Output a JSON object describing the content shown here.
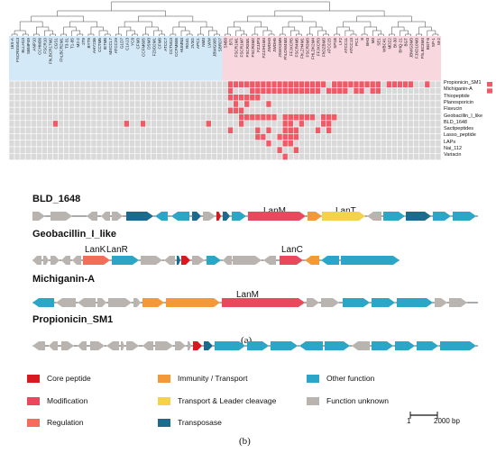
{
  "panel_a": {
    "caption": "(a)",
    "taxa_blue": [
      "16S-A",
      "FSCR5SM13",
      "BLLH13",
      "SBMP49",
      "ANP10",
      "CCHM36",
      "FSCR10",
      "FhLBCR17M2",
      "CGS1",
      "FhLBCR2M1",
      "T3-31",
      "T1-85",
      "M2-2",
      "2T9",
      "BYT9",
      "AHY236",
      "CCTM6",
      "IE7M8",
      "MXCCL7",
      "ATCC29",
      "G1D7",
      "C1A13",
      "YC8",
      "CFM3",
      "CCFM605",
      "DSM3",
      "FZ9D2M1",
      "CFM8",
      "ATCC7",
      "CCTM13",
      "CCFM606",
      "HUMN3",
      "RG41",
      "2V3G",
      "APC1",
      "NM3",
      "LWW",
      "JBWG905",
      "SBRD7"
    ],
    "taxa_pink": [
      "SN58",
      "B71",
      "FSCR1M1",
      "FSCR1M7",
      "FSCR3M1",
      "FSCR3M2",
      "FZJJP3",
      "FZJJH1M4",
      "JWDH3",
      "JWDH5",
      "JSWX3M9",
      "FhLDW4M3",
      "FFJXCR5",
      "FSCR4M5",
      "FhLZH4M1",
      "FSCR3M3",
      "FHLDK2M4",
      "FFJXCR3",
      "FhDZBM3",
      "ATCC25",
      "SP1B",
      "LF2",
      "ATCC11",
      "ATCC13",
      "PC1",
      "8",
      "BH3",
      "M4",
      "SE1",
      "WBC41",
      "MDZ2",
      "Bt-30",
      "BHQ-21",
      "BGT",
      "JBWG3M3",
      "FJXD10M3",
      "FhLBC3M4",
      "BGT-8",
      "SP-1",
      "M-2"
    ],
    "rows": [
      "Propionicin_SM1",
      "Michiganin-A",
      "Thiopeptide",
      "Planosporicin",
      "Flavucin",
      "Geobacillin_I_like",
      "BLD_1648",
      "Sactipeptides",
      "Lasso_peptide",
      "LAPs",
      "Nai_112",
      "Variacin"
    ]
  },
  "panel_b": {
    "caption": "(b)",
    "clusters": [
      {
        "title": "BLD_1648",
        "gene_labels": [
          "LanM",
          "LanT"
        ]
      },
      {
        "title": "Geobacillin_I_like",
        "gene_labels": [
          "LanK",
          "LanR",
          "LanC"
        ]
      },
      {
        "title": "Michiganin-A",
        "gene_labels": [
          "LanM"
        ]
      },
      {
        "title": "Propionicin_SM1",
        "gene_labels": []
      }
    ],
    "legend": [
      {
        "label": "Core peptide",
        "color": "#d71920"
      },
      {
        "label": "Immunity / Transport",
        "color": "#f3993a"
      },
      {
        "label": "Other function",
        "color": "#2ba6c6"
      },
      {
        "label": "Modification",
        "color": "#e8495c"
      },
      {
        "label": "Transport & Leader cleavage",
        "color": "#f5d24b"
      },
      {
        "label": "Function unknown",
        "color": "#b9b4b0"
      },
      {
        "label": "Regulation",
        "color": "#f46d5b"
      },
      {
        "label": "Transposase",
        "color": "#1a6b8e"
      }
    ],
    "scale": {
      "start": "1",
      "end": "2000 bp"
    }
  }
}
